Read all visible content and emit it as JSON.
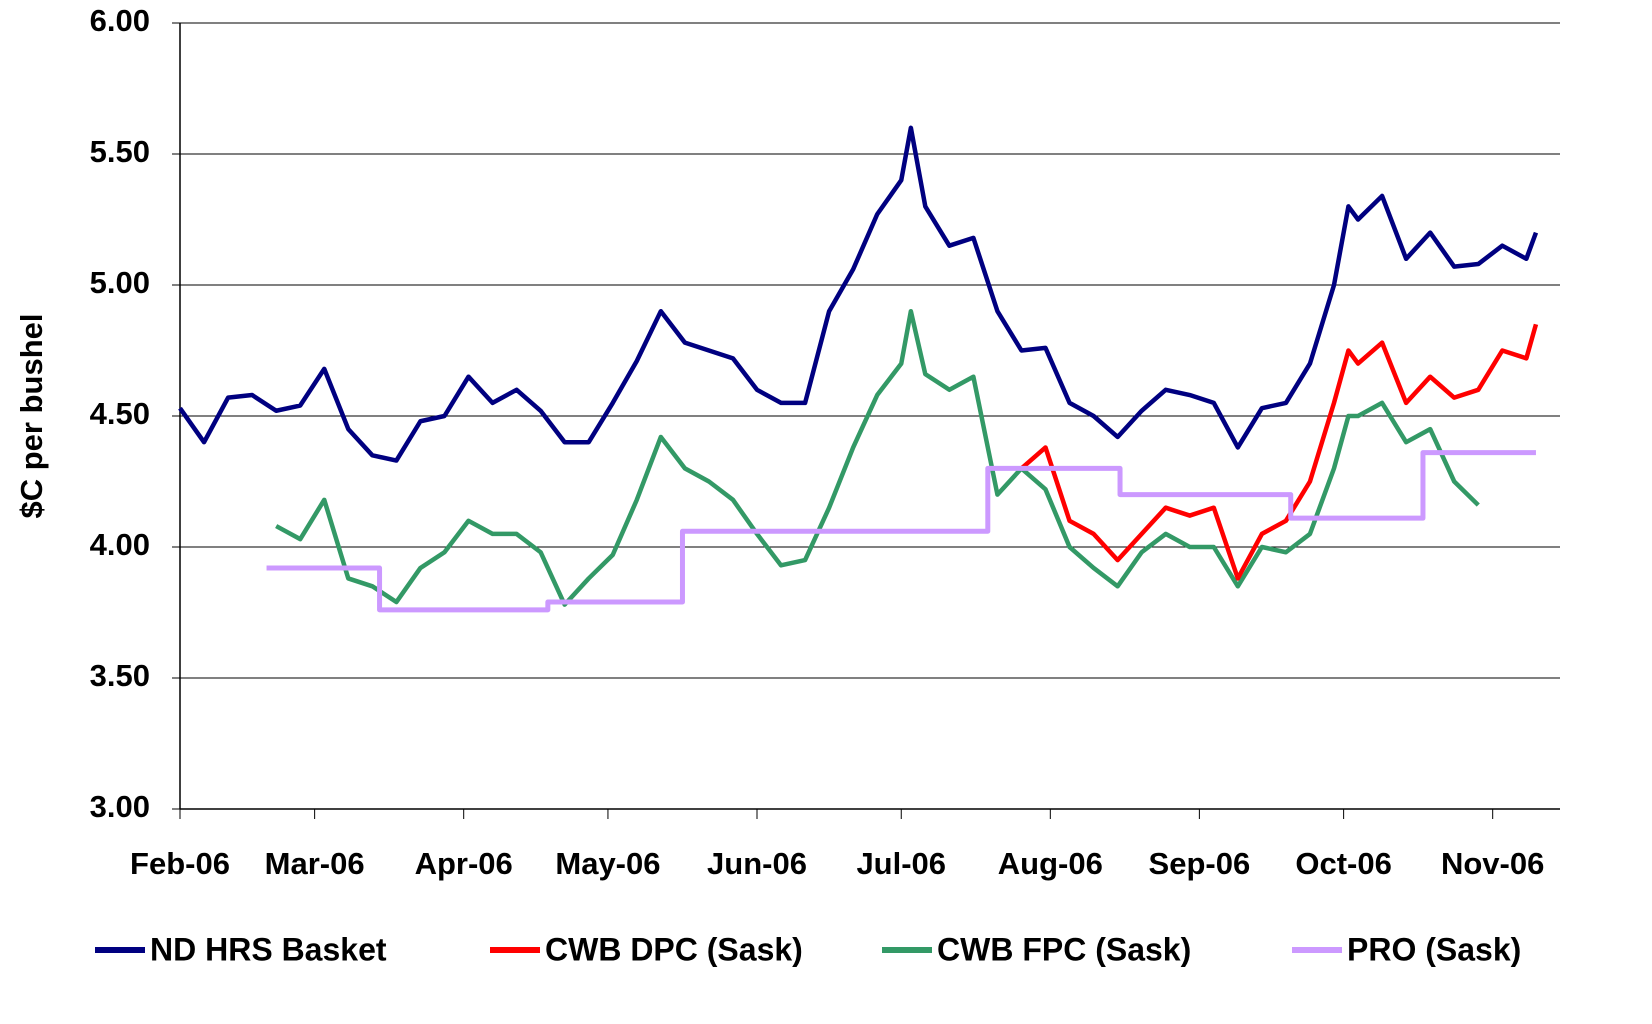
{
  "chart_data": {
    "type": "line",
    "y_label": "$C per bushel",
    "xlim": [
      0,
      287
    ],
    "xticks": [
      {
        "value": 0,
        "label": "Feb-06"
      },
      {
        "value": 28,
        "label": "Mar-06"
      },
      {
        "value": 59,
        "label": "Apr-06"
      },
      {
        "value": 89,
        "label": "May-06"
      },
      {
        "value": 120,
        "label": "Jun-06"
      },
      {
        "value": 150,
        "label": "Jul-06"
      },
      {
        "value": 181,
        "label": "Aug-06"
      },
      {
        "value": 212,
        "label": "Sep-06"
      },
      {
        "value": 242,
        "label": "Oct-06"
      },
      {
        "value": 273,
        "label": "Nov-06"
      }
    ],
    "ylim": [
      3,
      6
    ],
    "yticks": [
      {
        "value": 3,
        "label": "3.00"
      },
      {
        "value": 3.5,
        "label": "3.50"
      },
      {
        "value": 4,
        "label": "4.00"
      },
      {
        "value": 4.5,
        "label": "4.50"
      },
      {
        "value": 5,
        "label": "5.00"
      },
      {
        "value": 5.5,
        "label": "5.50"
      },
      {
        "value": 6,
        "label": "6.00"
      }
    ],
    "grid": true,
    "legend": "bottom",
    "x": [
      0,
      5,
      10,
      15,
      20,
      25,
      30,
      35,
      40,
      45,
      50,
      55,
      60,
      65,
      70,
      75,
      80,
      85,
      90,
      95,
      100,
      105,
      110,
      115,
      120,
      125,
      130,
      135,
      140,
      145,
      150,
      152,
      155,
      160,
      165,
      170,
      175,
      180,
      185,
      190,
      195,
      200,
      205,
      210,
      215,
      220,
      225,
      230,
      235,
      240,
      243,
      245,
      250,
      255,
      260,
      265,
      270,
      275,
      280,
      282
    ],
    "series": [
      {
        "name": "ND HRS Basket",
        "color": "#000080",
        "values": [
          4.53,
          4.4,
          4.57,
          4.58,
          4.52,
          4.54,
          4.68,
          4.45,
          4.35,
          4.33,
          4.48,
          4.5,
          4.65,
          4.55,
          4.6,
          4.52,
          4.4,
          4.4,
          4.55,
          4.71,
          4.9,
          4.78,
          4.75,
          4.72,
          4.6,
          4.55,
          4.55,
          4.9,
          5.06,
          5.27,
          5.4,
          5.6,
          5.3,
          5.15,
          5.18,
          4.9,
          4.75,
          4.76,
          4.55,
          4.5,
          4.42,
          4.52,
          4.6,
          4.58,
          4.55,
          4.38,
          4.53,
          4.55,
          4.7,
          5.0,
          5.3,
          5.25,
          5.34,
          5.1,
          5.2,
          5.07,
          5.08,
          5.15,
          5.1,
          5.2
        ]
      },
      {
        "name": "CWB DPC (Sask)",
        "color": "#ff0000",
        "values": [
          null,
          null,
          null,
          null,
          null,
          null,
          null,
          null,
          null,
          null,
          null,
          null,
          null,
          null,
          null,
          null,
          null,
          null,
          null,
          null,
          null,
          null,
          null,
          null,
          null,
          null,
          null,
          null,
          null,
          null,
          null,
          null,
          null,
          null,
          null,
          null,
          4.3,
          4.38,
          4.1,
          4.05,
          3.95,
          4.05,
          4.15,
          4.12,
          4.15,
          3.88,
          4.05,
          4.1,
          4.25,
          4.55,
          4.75,
          4.7,
          4.78,
          4.55,
          4.65,
          4.57,
          4.6,
          4.75,
          4.72,
          4.85
        ]
      },
      {
        "name": "CWB FPC (Sask)",
        "color": "#339966",
        "values": [
          null,
          null,
          null,
          null,
          4.08,
          4.03,
          4.18,
          3.88,
          3.85,
          3.79,
          3.92,
          3.98,
          4.1,
          4.05,
          4.05,
          3.98,
          3.78,
          3.88,
          3.97,
          4.18,
          4.42,
          4.3,
          4.25,
          4.18,
          4.05,
          3.93,
          3.95,
          4.15,
          4.38,
          4.58,
          4.7,
          4.9,
          4.66,
          4.6,
          4.65,
          4.2,
          4.3,
          4.22,
          4.0,
          3.92,
          3.85,
          3.98,
          4.05,
          4.0,
          4.0,
          3.85,
          4.0,
          3.98,
          4.05,
          4.3,
          4.5,
          4.5,
          4.55,
          4.4,
          4.45,
          4.25,
          4.16,
          null,
          null,
          null
        ]
      },
      {
        "name": "PRO (Sask)",
        "color": "#cc99ff",
        "step": true,
        "x": [
          18,
          41.5,
          76.5,
          104.5,
          168,
          195.5,
          231,
          258.5,
          282
        ],
        "values": [
          3.92,
          3.76,
          3.79,
          4.06,
          4.3,
          4.2,
          4.11,
          4.36,
          4.36
        ]
      }
    ]
  }
}
